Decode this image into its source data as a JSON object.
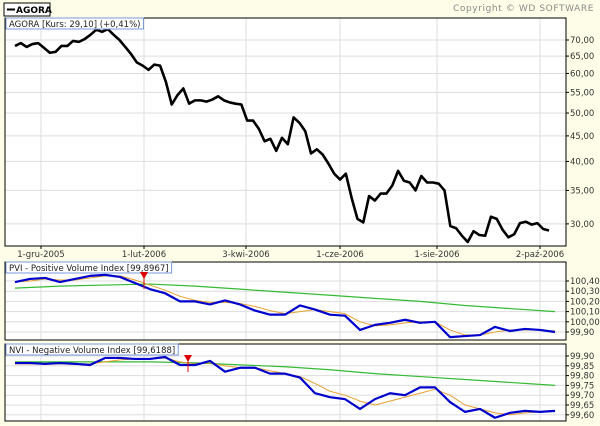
{
  "header": {
    "legend_label": "AGORA",
    "copyright": "Copyright © WD SOFTWARE"
  },
  "colors": {
    "background": "#fefee8",
    "price_line": "#000000",
    "indicator_line": "#0000cc",
    "short_average": "#e8a030",
    "long_average": "#33bb33",
    "signal_marker": "#dd0000",
    "grid": "#dddddd"
  },
  "chart_data": [
    {
      "type": "line",
      "title": "AGORA [Kurs: 29,10] (+0,41%)",
      "y_scale": "log",
      "ylim": [
        27,
        74
      ],
      "grid": true,
      "x_tick_labels": [
        "1-gru-2005",
        "1-lut-2006",
        "3-kwi-2006",
        "1-cze-2006",
        "1-sie-2006",
        "2-paź-2006"
      ],
      "y_tick_labels": [
        "70,00",
        "65,00",
        "60,00",
        "55,00",
        "50,00",
        "45,00",
        "40,00",
        "35,00",
        "30,00"
      ],
      "y_ticks": [
        70,
        65,
        60,
        55,
        50,
        45,
        40,
        35,
        30
      ],
      "series": [
        {
          "values": [
            68.1,
            69.0,
            67.8,
            68.7,
            69.0,
            67.5,
            66.0,
            66.3,
            68.1,
            68.1,
            69.7,
            69.4,
            70.3,
            71.7,
            73.4,
            72.7,
            73.6,
            71.7,
            70.0,
            67.8,
            65.6,
            63.1,
            62.2,
            61.0,
            62.5,
            62.2,
            57.7,
            52.0,
            54.3,
            56.0,
            52.2,
            53.0,
            53.0,
            52.7,
            53.2,
            54.0,
            53.0,
            52.5,
            52.2,
            52.0,
            48.3,
            48.3,
            46.5,
            43.9,
            44.4,
            42.0,
            44.6,
            43.3,
            49.0,
            47.8,
            46.0,
            41.5,
            42.3,
            41.3,
            39.6,
            37.8,
            36.8,
            37.8,
            33.8,
            30.7,
            30.2,
            34.1,
            33.4,
            34.5,
            34.5,
            35.8,
            38.3,
            36.6,
            36.3,
            35.0,
            37.4,
            36.3,
            36.3,
            36.1,
            35.0,
            29.7,
            29.4,
            28.4,
            27.6,
            29.0,
            28.5,
            28.4,
            31.0,
            30.7,
            29.2,
            28.2,
            28.6,
            30.1,
            30.3,
            29.9,
            30.1,
            29.3,
            29.1
          ]
        }
      ]
    },
    {
      "type": "line",
      "title": "PVI - Positive Volume Index [99,8967]",
      "ylim": [
        99.82,
        100.52
      ],
      "grid": true,
      "y_tick_labels": [
        "100,40",
        "100,30",
        "100,20",
        "100,10",
        "100,00",
        "99,90"
      ],
      "y_ticks": [
        100.4,
        100.3,
        100.2,
        100.1,
        100.0,
        99.9
      ],
      "series": [
        {
          "values": [
            100.39,
            100.42,
            100.43,
            100.39,
            100.42,
            100.45,
            100.46,
            100.44,
            100.38,
            100.32,
            100.28,
            100.2,
            100.2,
            100.17,
            100.21,
            100.17,
            100.11,
            100.07,
            100.07,
            100.16,
            100.12,
            100.07,
            100.06,
            99.92,
            99.97,
            99.99,
            100.02,
            99.99,
            100.0,
            99.85,
            99.86,
            99.87,
            99.95,
            99.91,
            99.93,
            99.92,
            99.9
          ]
        },
        {
          "values": [
            100.39,
            100.4,
            100.42,
            100.41,
            100.41,
            100.43,
            100.45,
            100.45,
            100.41,
            100.36,
            100.31,
            100.25,
            100.21,
            100.19,
            100.19,
            100.18,
            100.15,
            100.11,
            100.08,
            100.1,
            100.12,
            100.1,
            100.08,
            100.0,
            99.96,
            99.97,
            99.99,
            100.0,
            100.0,
            99.92,
            99.87,
            99.87,
            99.9,
            99.92,
            99.92,
            99.92,
            99.91
          ]
        },
        {
          "values": [
            100.33,
            100.35,
            100.36,
            100.37,
            100.35,
            100.32,
            100.29,
            100.26,
            100.23,
            100.2,
            100.16,
            100.13,
            100.1
          ]
        }
      ]
    },
    {
      "type": "line",
      "title": "NVI - Negative Volume Index [99,6188]",
      "ylim": [
        99.575,
        99.935
      ],
      "grid": true,
      "y_tick_labels": [
        "99,90",
        "99,85",
        "99,80",
        "99,75",
        "99,70",
        "99,65",
        "99,60"
      ],
      "y_ticks": [
        99.9,
        99.85,
        99.8,
        99.75,
        99.7,
        99.65,
        99.6
      ],
      "series": [
        {
          "values": [
            99.864,
            99.864,
            99.86,
            99.864,
            99.86,
            99.854,
            99.89,
            99.89,
            99.885,
            99.885,
            99.895,
            99.854,
            99.854,
            99.875,
            99.82,
            99.84,
            99.84,
            99.81,
            99.81,
            99.79,
            99.71,
            99.69,
            99.68,
            99.63,
            99.68,
            99.71,
            99.7,
            99.74,
            99.74,
            99.665,
            99.615,
            99.63,
            99.585,
            99.61,
            99.62,
            99.615,
            99.62
          ]
        },
        {
          "values": [
            99.86,
            99.86,
            99.86,
            99.86,
            99.86,
            99.86,
            99.87,
            99.88,
            99.885,
            99.885,
            99.89,
            99.87,
            99.86,
            99.865,
            99.85,
            99.84,
            99.84,
            99.825,
            99.81,
            99.795,
            99.76,
            99.72,
            99.7,
            99.67,
            99.65,
            99.67,
            99.69,
            99.71,
            99.73,
            99.7,
            99.65,
            99.63,
            99.61,
            99.6,
            99.61,
            99.615,
            99.62
          ]
        },
        {
          "values": [
            99.87,
            99.87,
            99.87,
            99.87,
            99.865,
            99.855,
            99.845,
            99.83,
            99.81,
            99.795,
            99.78,
            99.765,
            99.75
          ]
        }
      ]
    }
  ]
}
